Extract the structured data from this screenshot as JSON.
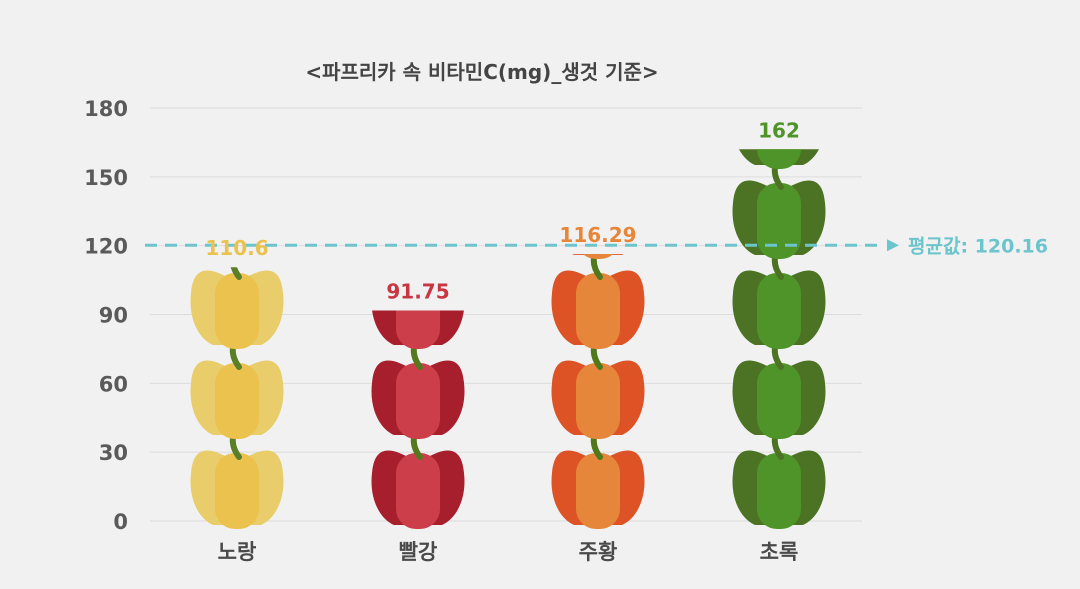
{
  "chart_data": {
    "type": "bar",
    "title": "<파프리카 속 비타민C(mg)_생것 기준>",
    "xlabel": "",
    "ylabel": "",
    "categories": [
      "노랑",
      "빨강",
      "주황",
      "초록"
    ],
    "values": [
      110.6,
      91.75,
      116.29,
      162
    ],
    "value_labels": [
      "110.6",
      "91.75",
      "116.29",
      "162"
    ],
    "ylim": [
      0,
      180
    ],
    "yticks": [
      "0",
      "30",
      "60",
      "90",
      "120",
      "150",
      "180"
    ],
    "grid": true,
    "average": {
      "label": "평균값",
      "value": 120.16,
      "text": "120.16"
    },
    "bar_colors": [
      {
        "body": "#e8cd6a",
        "center": "#ecc24e",
        "label": "#ecc24e",
        "stem": "#5b7e28"
      },
      {
        "body": "#a71f2d",
        "center": "#cc3e4a",
        "label": "#c83642",
        "stem": "#55781f"
      },
      {
        "body": "#dd5325",
        "center": "#e6863a",
        "label": "#e6863a",
        "stem": "#52781c"
      },
      {
        "body": "#4b7323",
        "center": "#4e9428",
        "label": "#4e9428",
        "stem": "#4b7323"
      }
    ],
    "grid_color": "#dcdcdc",
    "avg_color": "#6cc4cc"
  }
}
